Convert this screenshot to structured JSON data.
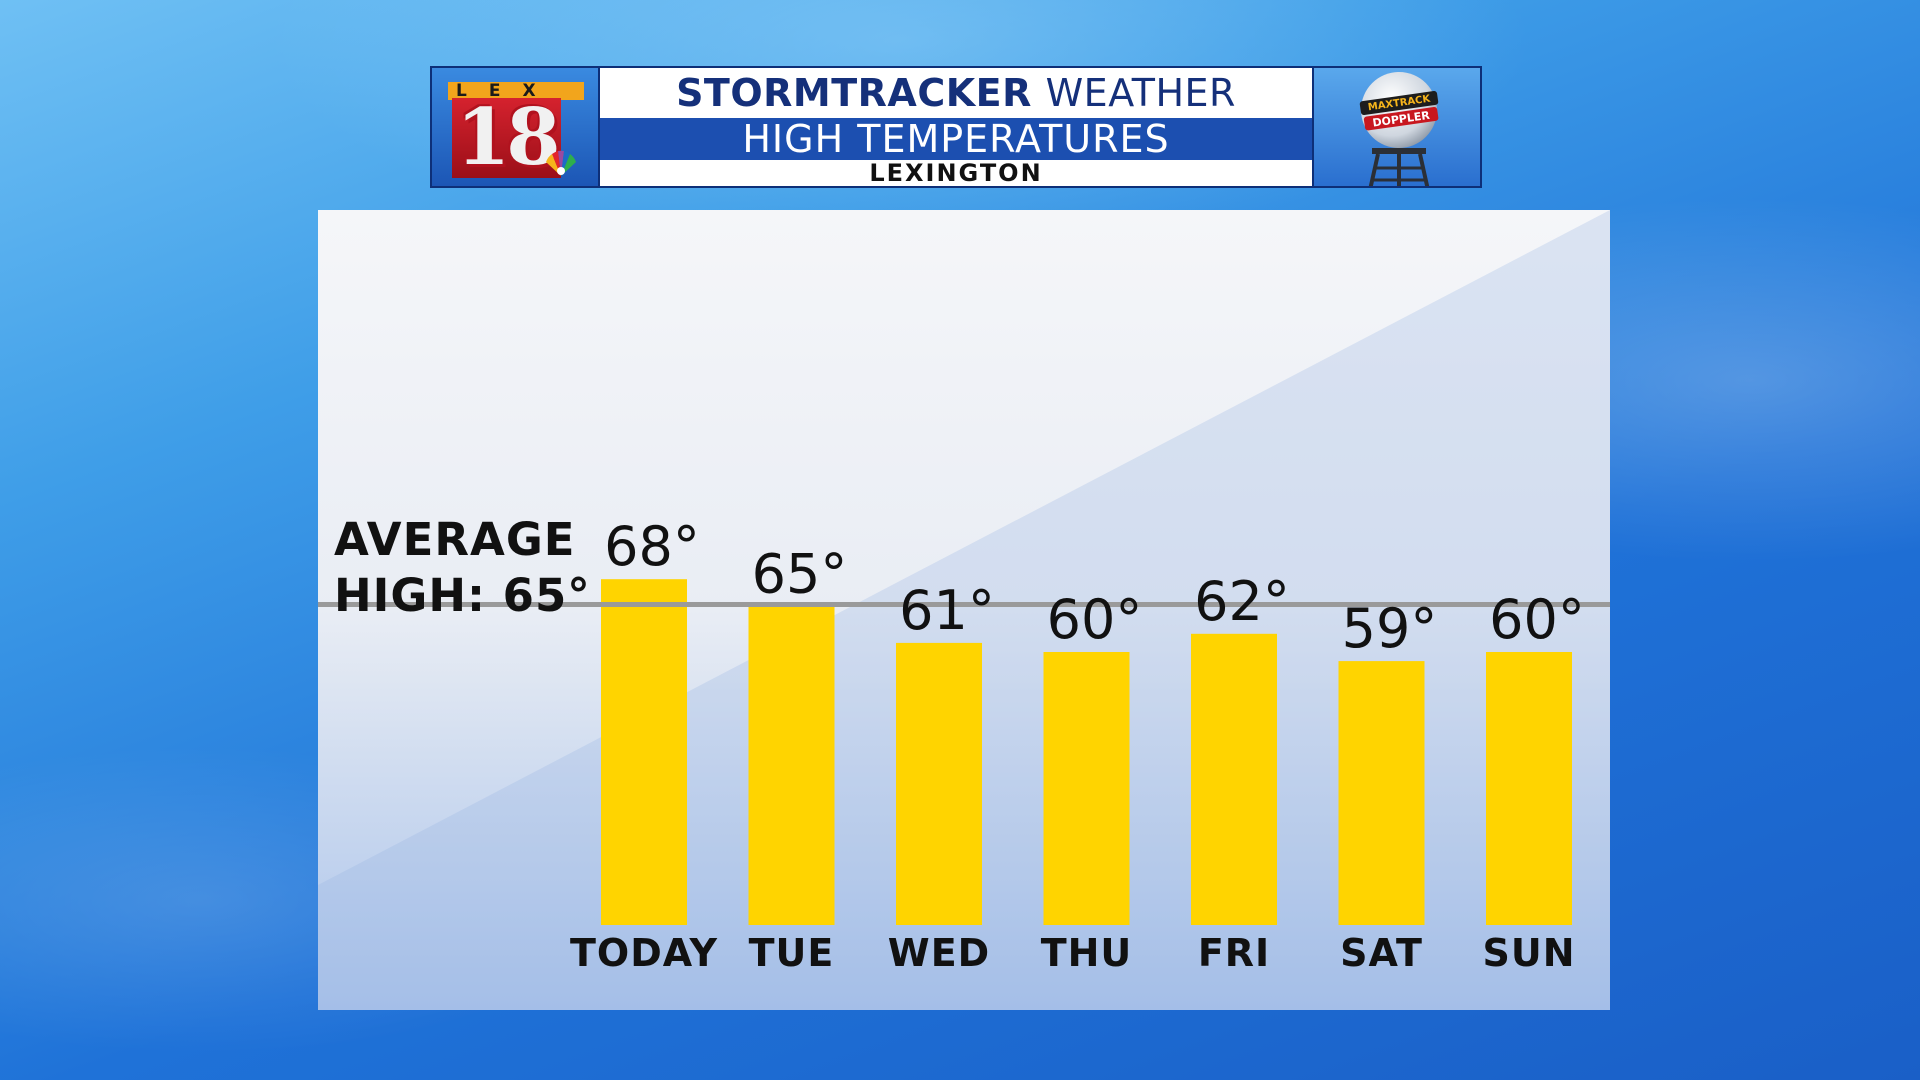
{
  "banner": {
    "logo_text_top": "LEX",
    "logo_text_number": "18",
    "title_strong": "STORMTRACKER",
    "title_light": "WEATHER",
    "subtitle": "HIGH TEMPERATURES",
    "location": "LEXINGTON",
    "radar_logo_text_1": "MAXTRACK",
    "radar_logo_text_2": "DOPPLER"
  },
  "average": {
    "line1": "AVERAGE",
    "line2": "HIGH: 65°",
    "value": 65
  },
  "colors": {
    "bar": "#ffd400",
    "average_line": "#9a9a9a",
    "banner_blue": "#1c4fb0",
    "title_text": "#15307a"
  },
  "chart_data": {
    "type": "bar",
    "title": "HIGH TEMPERATURES",
    "categories": [
      "TODAY",
      "TUE",
      "WED",
      "THU",
      "FRI",
      "SAT",
      "SUN"
    ],
    "values": [
      68,
      65,
      61,
      60,
      62,
      59,
      60
    ],
    "value_labels": [
      "68°",
      "65°",
      "61°",
      "60°",
      "62°",
      "59°",
      "60°"
    ],
    "reference_line": {
      "label": "AVERAGE HIGH: 65°",
      "value": 65
    },
    "xlabel": "",
    "ylabel": "",
    "ylim": [
      30,
      70
    ],
    "grid": false,
    "legend": "none"
  }
}
